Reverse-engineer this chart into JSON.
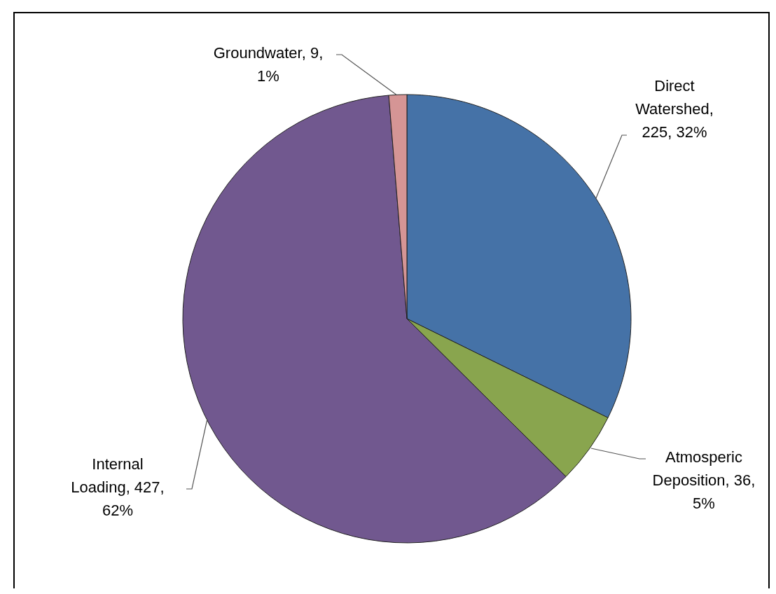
{
  "chart_data": {
    "type": "pie",
    "categories": [
      "Direct Watershed",
      "Atmosperic Deposition",
      "Internal Loading",
      "Groundwater"
    ],
    "values": [
      225,
      36,
      427,
      9
    ],
    "value_labels": [
      ", 225, 32%",
      ", 36, 5%",
      ", 427, 62%",
      ", 9, 1%"
    ],
    "colors": [
      "#4572a7",
      "#89a54e",
      "#71588f",
      "#d59595"
    ],
    "legend": false
  }
}
